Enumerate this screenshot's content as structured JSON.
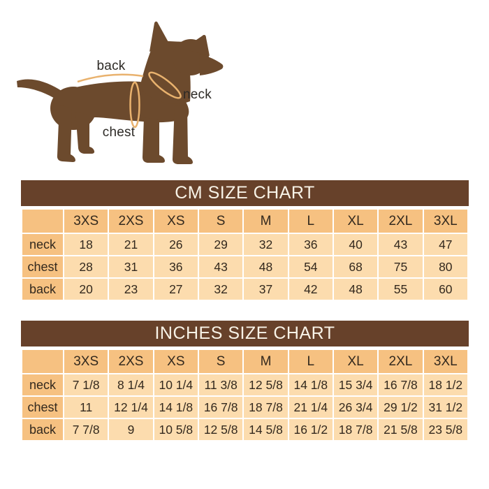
{
  "diagram": {
    "labels": {
      "back": "back",
      "neck": "neck",
      "chest": "chest"
    }
  },
  "chart_data": [
    {
      "type": "table",
      "title": "CM SIZE CHART",
      "unit": "cm",
      "columns": [
        "",
        "3XS",
        "2XS",
        "XS",
        "S",
        "M",
        "L",
        "XL",
        "2XL",
        "3XL"
      ],
      "rows": [
        {
          "label": "neck",
          "values": [
            "18",
            "21",
            "26",
            "29",
            "32",
            "36",
            "40",
            "43",
            "47"
          ]
        },
        {
          "label": "chest",
          "values": [
            "28",
            "31",
            "36",
            "43",
            "48",
            "54",
            "68",
            "75",
            "80"
          ]
        },
        {
          "label": "back",
          "values": [
            "20",
            "23",
            "27",
            "32",
            "37",
            "42",
            "48",
            "55",
            "60"
          ]
        }
      ]
    },
    {
      "type": "table",
      "title": "INCHES SIZE CHART",
      "unit": "inches",
      "columns": [
        "",
        "3XS",
        "2XS",
        "XS",
        "S",
        "M",
        "L",
        "XL",
        "2XL",
        "3XL"
      ],
      "rows": [
        {
          "label": "neck",
          "values": [
            "7 1/8",
            "8 1/4",
            "10 1/4",
            "11 3/8",
            "12 5/8",
            "14 1/8",
            "15 3/4",
            "16 7/8",
            "18 1/2"
          ]
        },
        {
          "label": "chest",
          "values": [
            "11",
            "12 1/4",
            "14 1/8",
            "16 7/8",
            "18 7/8",
            "21 1/4",
            "26 3/4",
            "29 1/2",
            "31 1/2"
          ]
        },
        {
          "label": "back",
          "values": [
            "7 7/8",
            "9",
            "10 5/8",
            "12 5/8",
            "14 5/8",
            "16 1/2",
            "18 7/8",
            "21 5/8",
            "23 5/8"
          ]
        }
      ]
    }
  ],
  "colors": {
    "header_brown": "#67412a",
    "dog_brown": "#6c4a2d",
    "size_header_orange": "#f6c181",
    "cell_peach": "#fcdcae",
    "measure_line_orange": "#e9b26e",
    "title_text": "#f8f3e7",
    "cell_text": "#33291e"
  }
}
